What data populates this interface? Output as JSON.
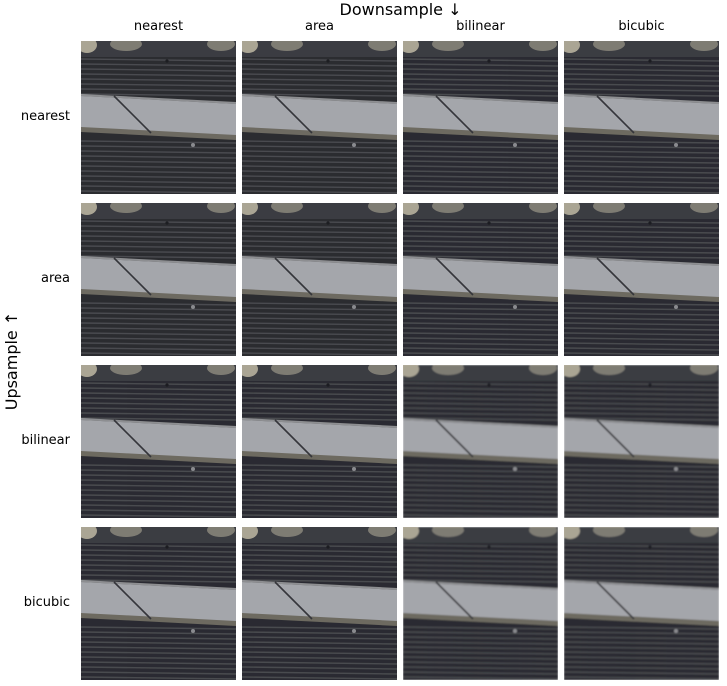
{
  "figure": {
    "column_title": "Downsample ↓",
    "row_title": "Upsample ↑",
    "columns": [
      "nearest",
      "area",
      "bilinear",
      "bicubic"
    ],
    "rows": [
      "nearest",
      "area",
      "bilinear",
      "bicubic"
    ],
    "tile_content": "photo-crop-grille",
    "colors": {
      "grille_dark": "#2b2c30",
      "grille_line": "#4a4b50",
      "strip": "#a4a6ab",
      "strip_edge": "#6d6a61",
      "cap": "#b7b09d"
    }
  }
}
